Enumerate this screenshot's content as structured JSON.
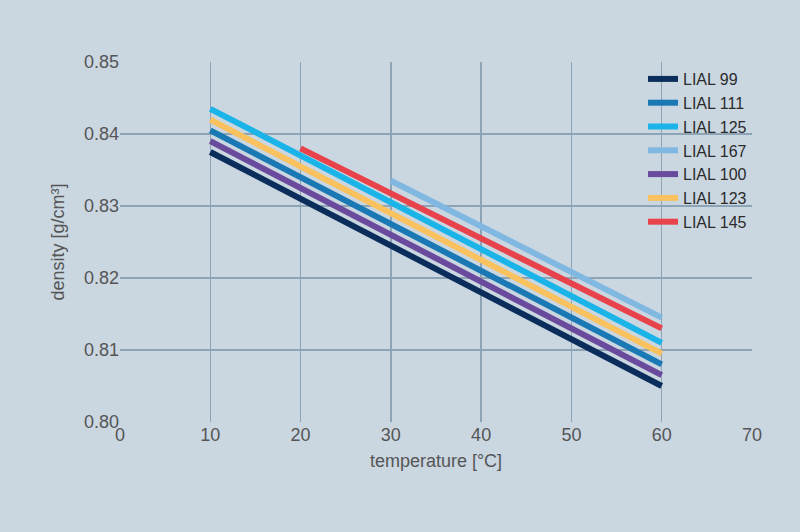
{
  "chart_data": {
    "type": "line",
    "x_label": "temperature [°C]",
    "y_label": "density [g/cm³]",
    "series": [
      {
        "name": "LIAL 99",
        "color": "#0b2d5b",
        "x": [
          10,
          60
        ],
        "values": [
          0.8375,
          0.805
        ]
      },
      {
        "name": "LIAL 111",
        "color": "#1a78b4",
        "x": [
          10,
          60
        ],
        "values": [
          0.8405,
          0.808
        ]
      },
      {
        "name": "LIAL 125",
        "color": "#1ab4e8",
        "x": [
          10,
          60
        ],
        "values": [
          0.8435,
          0.811
        ]
      },
      {
        "name": "LIAL 167",
        "color": "#80b8e2",
        "x": [
          30,
          60
        ],
        "values": [
          0.8335,
          0.8145
        ]
      },
      {
        "name": "LIAL 100",
        "color": "#6a4a9c",
        "x": [
          10,
          60
        ],
        "values": [
          0.839,
          0.8065
        ]
      },
      {
        "name": "LIAL 123",
        "color": "#f9c25e",
        "x": [
          10,
          60
        ],
        "values": [
          0.842,
          0.8095
        ]
      },
      {
        "name": "LIAL 145",
        "color": "#e8434b",
        "x": [
          20,
          60
        ],
        "values": [
          0.838,
          0.813
        ]
      }
    ],
    "xlim": [
      0,
      70
    ],
    "xticks": [
      0,
      10,
      20,
      30,
      40,
      50,
      60,
      70
    ],
    "ylim": [
      0.8,
      0.85
    ],
    "yticks": [
      {
        "value": 0.8,
        "label": "0.80"
      },
      0.81,
      0.82,
      0.83,
      0.84,
      0.85
    ],
    "grid": true,
    "legend": "top right"
  }
}
